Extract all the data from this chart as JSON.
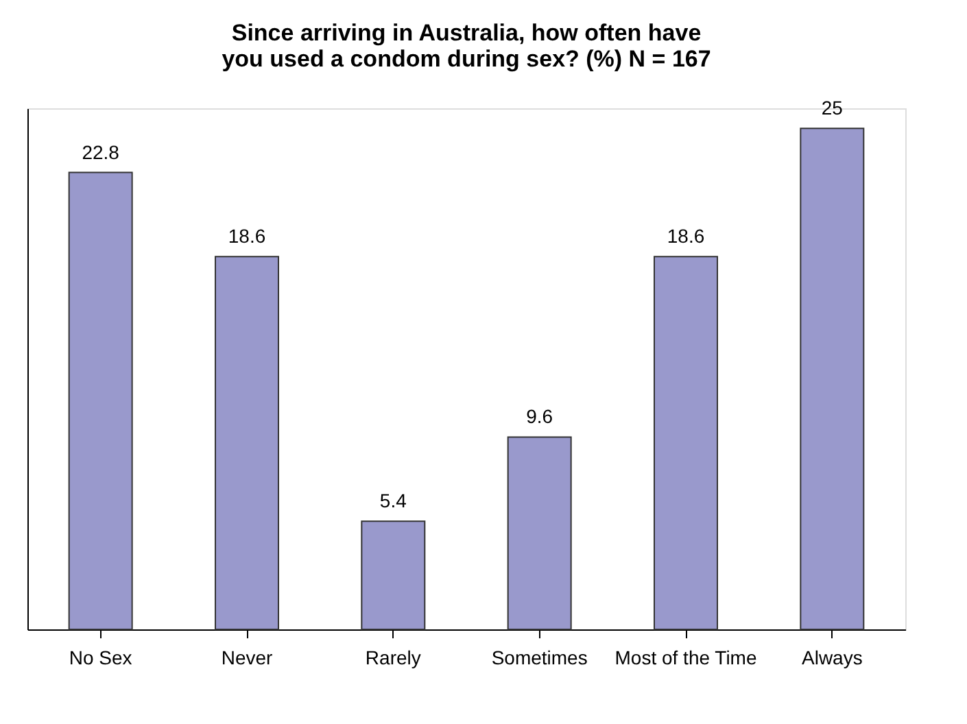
{
  "chart_data": {
    "type": "bar",
    "title": "Since arriving in Australia, how often have you used a condom during sex? (%)  N = 167",
    "categories": [
      "No Sex",
      "Never",
      "Rarely",
      "Sometimes",
      "Most of the Time",
      "Always"
    ],
    "values": [
      22.8,
      18.6,
      5.4,
      9.6,
      18.6,
      25
    ],
    "color": "#9999cc",
    "data_labels": true,
    "grid": false
  }
}
